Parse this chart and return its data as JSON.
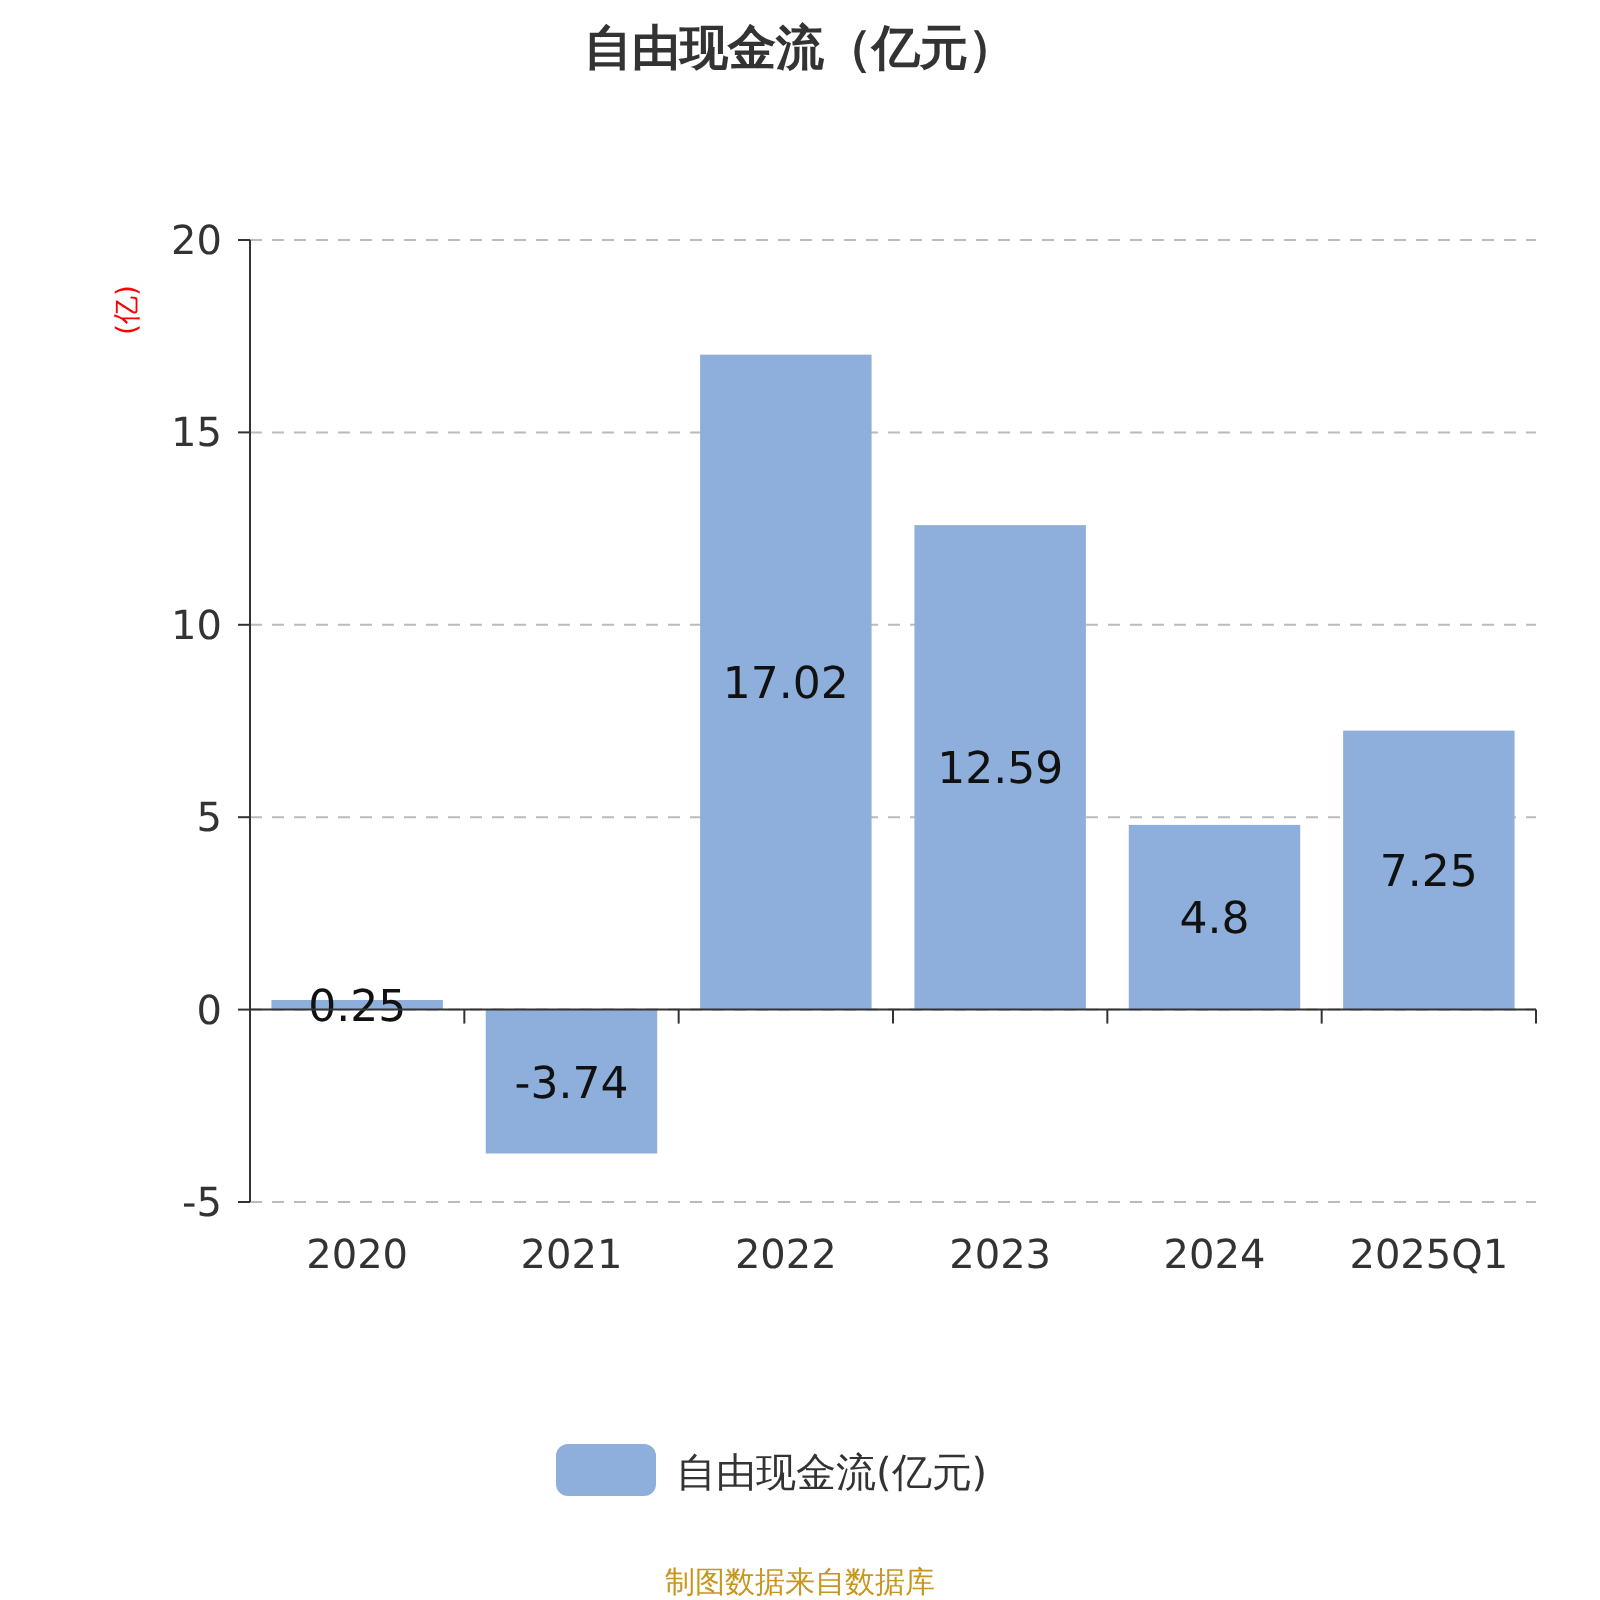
{
  "chart_data": {
    "type": "bar",
    "title": "自由现金流（亿元）",
    "ylabel": "(亿)",
    "categories": [
      "2020",
      "2021",
      "2022",
      "2023",
      "2024",
      "2025Q1"
    ],
    "series": [
      {
        "name": "自由现金流(亿元)",
        "color": "#8eaedb",
        "values": [
          0.25,
          -3.74,
          17.02,
          12.59,
          4.8,
          7.25
        ]
      }
    ],
    "ylim": [
      -5,
      20
    ],
    "yticks": [
      -5,
      0,
      5,
      10,
      15,
      20
    ],
    "grid": "y",
    "legend": "bottom",
    "data_labels": true,
    "annotations": [
      "制图数据来自数据库"
    ]
  }
}
